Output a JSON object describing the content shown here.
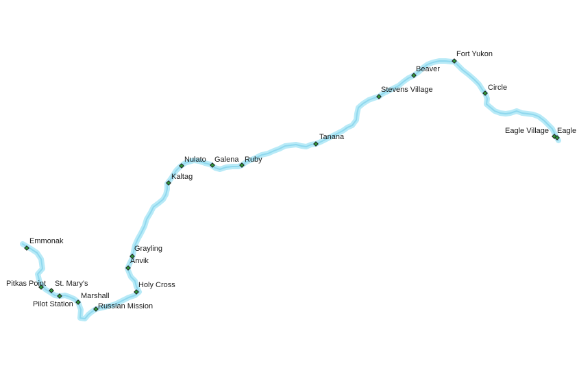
{
  "map": {
    "river_halo_color": "#b8eaf7",
    "river_line_color": "#8fd8ee",
    "marker_color": "#2e9a3a",
    "label_color": "#1a1a1a",
    "marker_shape": "diamond"
  },
  "towns": [
    {
      "name": "Emmonak"
    },
    {
      "name": "Pitkas Point"
    },
    {
      "name": "St. Mary's"
    },
    {
      "name": "Pilot Station"
    },
    {
      "name": "Marshall"
    },
    {
      "name": "Russian Mission"
    },
    {
      "name": "Holy Cross"
    },
    {
      "name": "Anvik"
    },
    {
      "name": "Grayling"
    },
    {
      "name": "Kaltag"
    },
    {
      "name": "Nulato"
    },
    {
      "name": "Galena"
    },
    {
      "name": "Ruby"
    },
    {
      "name": "Tanana"
    },
    {
      "name": "Stevens Village"
    },
    {
      "name": "Beaver"
    },
    {
      "name": "Fort Yukon"
    },
    {
      "name": "Circle"
    },
    {
      "name": "Eagle Village"
    },
    {
      "name": "Eagle"
    }
  ]
}
